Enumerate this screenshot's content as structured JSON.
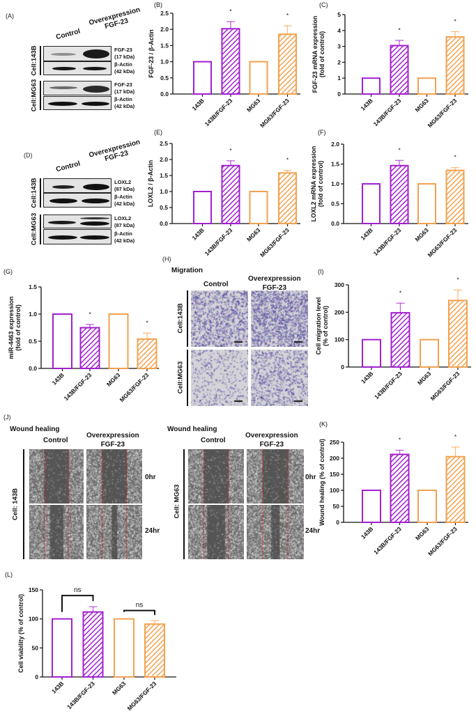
{
  "colors": {
    "purple": "#a21fd0",
    "orange": "#f2a14e"
  },
  "panel_A": {
    "label": "(A)",
    "col_control": "Control",
    "col_over_1": "Overexpression",
    "col_over_2": "FGF-23",
    "cell_1": "Cell:143B",
    "cell_2": "Cell:MG63",
    "rows": [
      {
        "name": "FGF-23",
        "size": "(17 kDa)"
      },
      {
        "name": "β-Actin",
        "size": "(42 kDa)"
      },
      {
        "name": "FGF-23",
        "size": "(17 kDa)"
      },
      {
        "name": "β-Actin",
        "size": "(42 kDa)"
      }
    ]
  },
  "panel_D": {
    "label": "(D)",
    "col_control": "Control",
    "col_over_1": "Overexpression",
    "col_over_2": "FGF-23",
    "cell_1": "Cell:143B",
    "cell_2": "Cell:MG63",
    "rows": [
      {
        "name": "LOXL2",
        "size": "(87 kDa)"
      },
      {
        "name": "β-Actin",
        "size": "(42 kDa)"
      },
      {
        "name": "LOXL2",
        "size": "(87 kDa)"
      },
      {
        "name": "β-Actin",
        "size": "(42 kDa)"
      }
    ]
  },
  "panel_H": {
    "label": "(H)",
    "title": "Migration",
    "col_control": "Control",
    "col_over_1": "Overexpression",
    "col_over_2": "FGF-23",
    "cell_1": "Cell:143B",
    "cell_2": "Cell:MG63"
  },
  "panel_J": {
    "label": "(J)",
    "left": {
      "title": "Wound healing",
      "col_control": "Control",
      "col_over_1": "Overexpression",
      "col_over_2": "FGF-23",
      "cell": "Cell: 143B",
      "t0": "0hr",
      "t24": "24hr"
    },
    "right": {
      "title": "Wound healing",
      "col_control": "Control",
      "col_over_1": "Overexpression",
      "col_over_2": "FGF-23",
      "cell": "Cell: MG63",
      "t0": "0hr",
      "t24": "24hr"
    }
  },
  "chart_data": [
    {
      "panel": "(B)",
      "type": "bar",
      "categories": [
        "143B",
        "143B/FGF-23",
        "MG63",
        "MG63/FGF-23"
      ],
      "values": [
        1,
        2.02,
        1,
        1.85
      ],
      "errors": [
        0,
        0.22,
        0,
        0.26
      ],
      "significance": [
        "",
        "*",
        "",
        "*"
      ],
      "ylabel": [
        "FGF-23 / β-Actin"
      ],
      "ylim": [
        0,
        2.5
      ],
      "yticks": [
        "0.0",
        "0.5",
        "1.0",
        "1.5",
        "2.0",
        "2.5"
      ],
      "grid": false
    },
    {
      "panel": "(C)",
      "type": "bar",
      "categories": [
        "143B",
        "143B/FGF-23",
        "MG63",
        "MG63/FGF-23"
      ],
      "values": [
        1,
        3.05,
        1,
        3.6
      ],
      "errors": [
        0,
        0.33,
        0,
        0.33
      ],
      "significance": [
        "",
        "*",
        "",
        "*"
      ],
      "ylabel": [
        "FGF-23 mRNA expression",
        "(fold of control)"
      ],
      "ylim": [
        0,
        5
      ],
      "yticks": [
        "0",
        "1",
        "2",
        "3",
        "4",
        "5"
      ],
      "grid": false
    },
    {
      "panel": "(E)",
      "type": "bar",
      "categories": [
        "143B",
        "143B/FGF-23",
        "MG63",
        "MG63/FGF-23"
      ],
      "values": [
        1,
        1.81,
        1,
        1.58
      ],
      "errors": [
        0,
        0.15,
        0,
        0.08
      ],
      "significance": [
        "",
        "*",
        "",
        "*"
      ],
      "ylabel": [
        "LOXL2 / β-Actin"
      ],
      "ylim": [
        0,
        2.5
      ],
      "yticks": [
        "0.0",
        "0.5",
        "1.0",
        "1.5",
        "2.0",
        "2.5"
      ],
      "grid": false
    },
    {
      "panel": "(F)",
      "type": "bar",
      "categories": [
        "143B",
        "143B/FGF-23",
        "MG63",
        "MG63/FGF-23"
      ],
      "values": [
        1,
        1.46,
        1,
        1.34
      ],
      "errors": [
        0,
        0.13,
        0,
        0.07
      ],
      "significance": [
        "",
        "*",
        "",
        "*"
      ],
      "ylabel": [
        "LOXL2 mRNA expression",
        "(fold of control)"
      ],
      "ylim": [
        0,
        2.0
      ],
      "yticks": [
        "0.0",
        "0.5",
        "1.0",
        "1.5",
        "2.0"
      ],
      "grid": false
    },
    {
      "panel": "(G)",
      "type": "bar",
      "categories": [
        "143B",
        "143B/FGF-23",
        "MG63",
        "MG63/FGF-23"
      ],
      "values": [
        1,
        0.75,
        1,
        0.54
      ],
      "errors": [
        0,
        0.06,
        0,
        0.11
      ],
      "significance": [
        "",
        "*",
        "",
        "*"
      ],
      "ylabel": [
        "miR-4463 expression",
        "(fold of control)"
      ],
      "ylim": [
        0,
        1.5
      ],
      "yticks": [
        "0.0",
        "0.5",
        "1.0",
        "1.5"
      ],
      "grid": false
    },
    {
      "panel": "(I)",
      "type": "bar",
      "categories": [
        "143B",
        "143B/FGF-23",
        "MG63",
        "MG63/FGF-23"
      ],
      "values": [
        100,
        198,
        100,
        243
      ],
      "errors": [
        0,
        35,
        0,
        38
      ],
      "significance": [
        "",
        "*",
        "",
        "*"
      ],
      "ylabel": [
        "Cell migration level",
        "(% of control)"
      ],
      "ylim": [
        0,
        300
      ],
      "yticks": [
        "0",
        "100",
        "200",
        "300"
      ],
      "grid": false
    },
    {
      "panel": "(K)",
      "type": "bar",
      "categories": [
        "143B",
        "143B/FGF-23",
        "MG63",
        "MG63/FGF-23"
      ],
      "values": [
        100,
        212,
        100,
        205
      ],
      "errors": [
        0,
        13,
        0,
        30
      ],
      "significance": [
        "",
        "*",
        "",
        "*"
      ],
      "ylabel": [
        "Wound healing (% of control)"
      ],
      "ylim": [
        0,
        250
      ],
      "yticks": [
        "0",
        "50",
        "100",
        "150",
        "200",
        "250"
      ],
      "grid": false
    },
    {
      "panel": "(L)",
      "type": "bar",
      "categories": [
        "143B",
        "143B/FGF-23",
        "MG63",
        "MG63/FGF-23"
      ],
      "values": [
        100,
        112,
        100,
        91
      ],
      "errors": [
        0,
        9,
        0,
        6
      ],
      "significance": [],
      "brackets": [
        {
          "from": 0,
          "to": 1,
          "label": "ns"
        },
        {
          "from": 2,
          "to": 3,
          "label": "ns"
        }
      ],
      "ylabel": [
        "Cell viability (% of control)"
      ],
      "ylim": [
        0,
        150
      ],
      "yticks": [
        "0",
        "50",
        "100",
        "150"
      ],
      "grid": false
    }
  ]
}
